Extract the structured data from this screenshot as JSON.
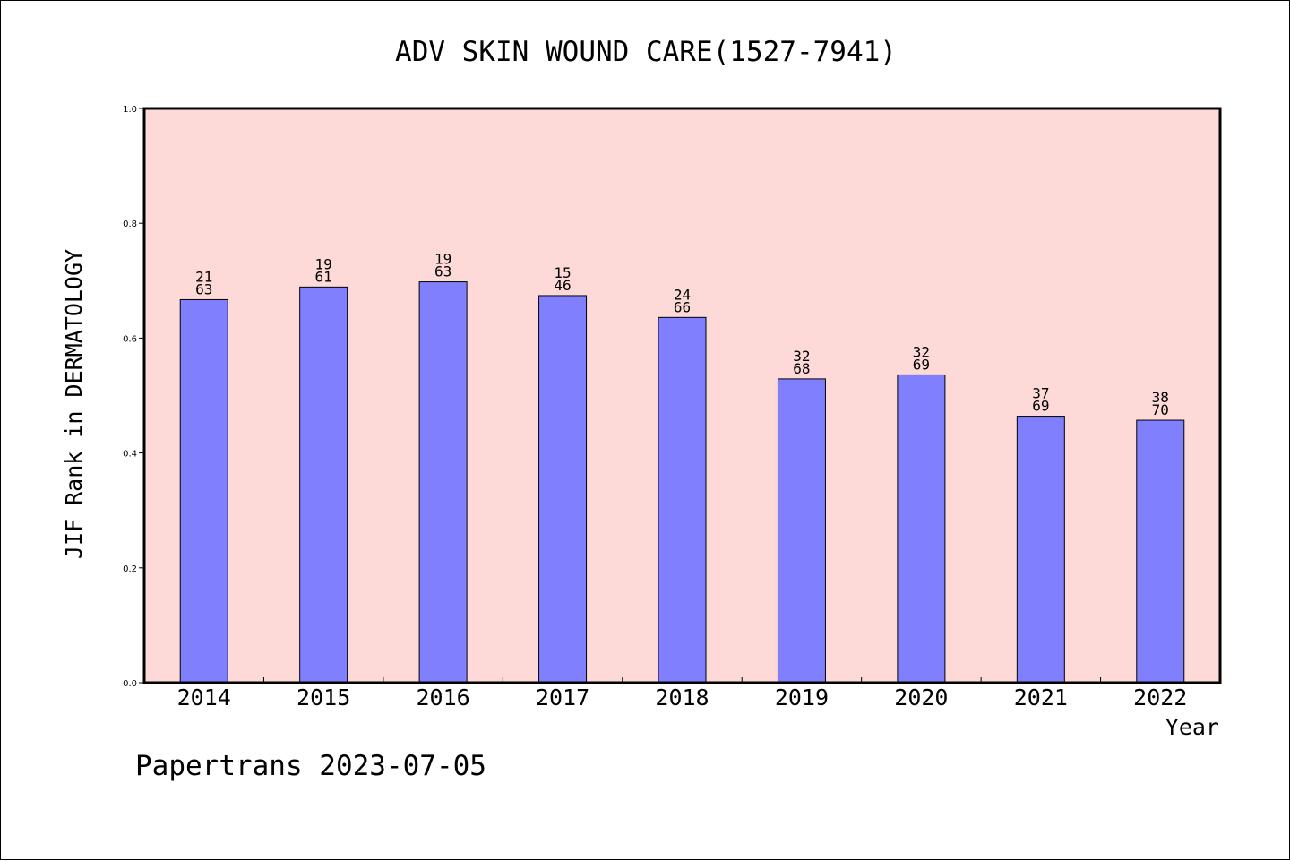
{
  "chart_data": {
    "type": "bar",
    "title": "ADV SKIN WOUND CARE(1527-7941)",
    "xlabel": "Year",
    "ylabel": "JIF Rank in DERMATOLOGY",
    "ylim": [
      0,
      1
    ],
    "y_ticks": [
      "0.0",
      "0.2",
      "0.4",
      "0.6",
      "0.8",
      "1.0"
    ],
    "y_tick_values": [
      0,
      0.2,
      0.4,
      0.6,
      0.8,
      1.0
    ],
    "categories": [
      "2014",
      "2015",
      "2016",
      "2017",
      "2018",
      "2019",
      "2020",
      "2021",
      "2022"
    ],
    "values": [
      0.667,
      0.689,
      0.698,
      0.674,
      0.636,
      0.529,
      0.536,
      0.464,
      0.457
    ],
    "bar_labels": [
      {
        "rank": "21",
        "total": "63"
      },
      {
        "rank": "19",
        "total": "61"
      },
      {
        "rank": "19",
        "total": "63"
      },
      {
        "rank": "15",
        "total": "46"
      },
      {
        "rank": "24",
        "total": "66"
      },
      {
        "rank": "32",
        "total": "68"
      },
      {
        "rank": "32",
        "total": "69"
      },
      {
        "rank": "37",
        "total": "69"
      },
      {
        "rank": "38",
        "total": "70"
      }
    ],
    "grid": false,
    "colors": {
      "plot_background": "#fddad8",
      "bar_fill": "#8080ff",
      "bar_stroke": "#000000",
      "axis": "#000000"
    }
  },
  "footer": {
    "credit": "Papertrans 2023-07-05"
  }
}
